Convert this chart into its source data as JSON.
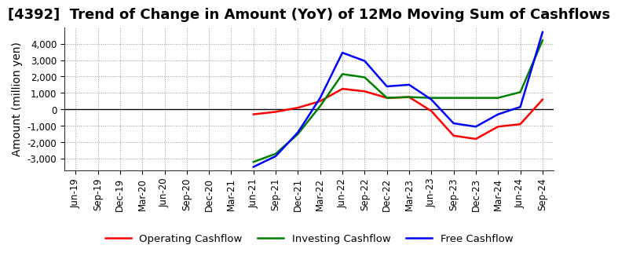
{
  "title": "[4392]  Trend of Change in Amount (YoY) of 12Mo Moving Sum of Cashflows",
  "ylabel": "Amount (million yen)",
  "x_labels": [
    "Jun-19",
    "Sep-19",
    "Dec-19",
    "Mar-20",
    "Jun-20",
    "Sep-20",
    "Dec-20",
    "Mar-21",
    "Jun-21",
    "Sep-21",
    "Dec-21",
    "Mar-22",
    "Jun-22",
    "Sep-22",
    "Dec-22",
    "Mar-23",
    "Jun-23",
    "Sep-23",
    "Dec-23",
    "Mar-24",
    "Jun-24",
    "Sep-24"
  ],
  "operating_cashflow": [
    null,
    null,
    null,
    null,
    null,
    null,
    null,
    null,
    -300,
    -150,
    100,
    500,
    1250,
    1100,
    700,
    750,
    -100,
    -1600,
    -1800,
    -1050,
    -900,
    600
  ],
  "investing_cashflow": [
    null,
    null,
    null,
    null,
    null,
    null,
    null,
    null,
    -3200,
    -2700,
    -1500,
    200,
    2150,
    1950,
    700,
    750,
    700,
    700,
    700,
    700,
    1050,
    4200
  ],
  "free_cashflow": [
    null,
    null,
    null,
    null,
    null,
    null,
    null,
    null,
    -3500,
    -2850,
    -1400,
    700,
    3450,
    2950,
    1400,
    1500,
    600,
    -850,
    -1050,
    -300,
    150,
    4700
  ],
  "operating_color": "#ff0000",
  "investing_color": "#008000",
  "free_color": "#0000ff",
  "ylim": [
    -3700,
    5000
  ],
  "yticks": [
    -3000,
    -2000,
    -1000,
    0,
    1000,
    2000,
    3000,
    4000
  ],
  "background_color": "#ffffff",
  "grid_color": "#999999",
  "title_fontsize": 13,
  "label_fontsize": 10,
  "tick_fontsize": 8.5
}
